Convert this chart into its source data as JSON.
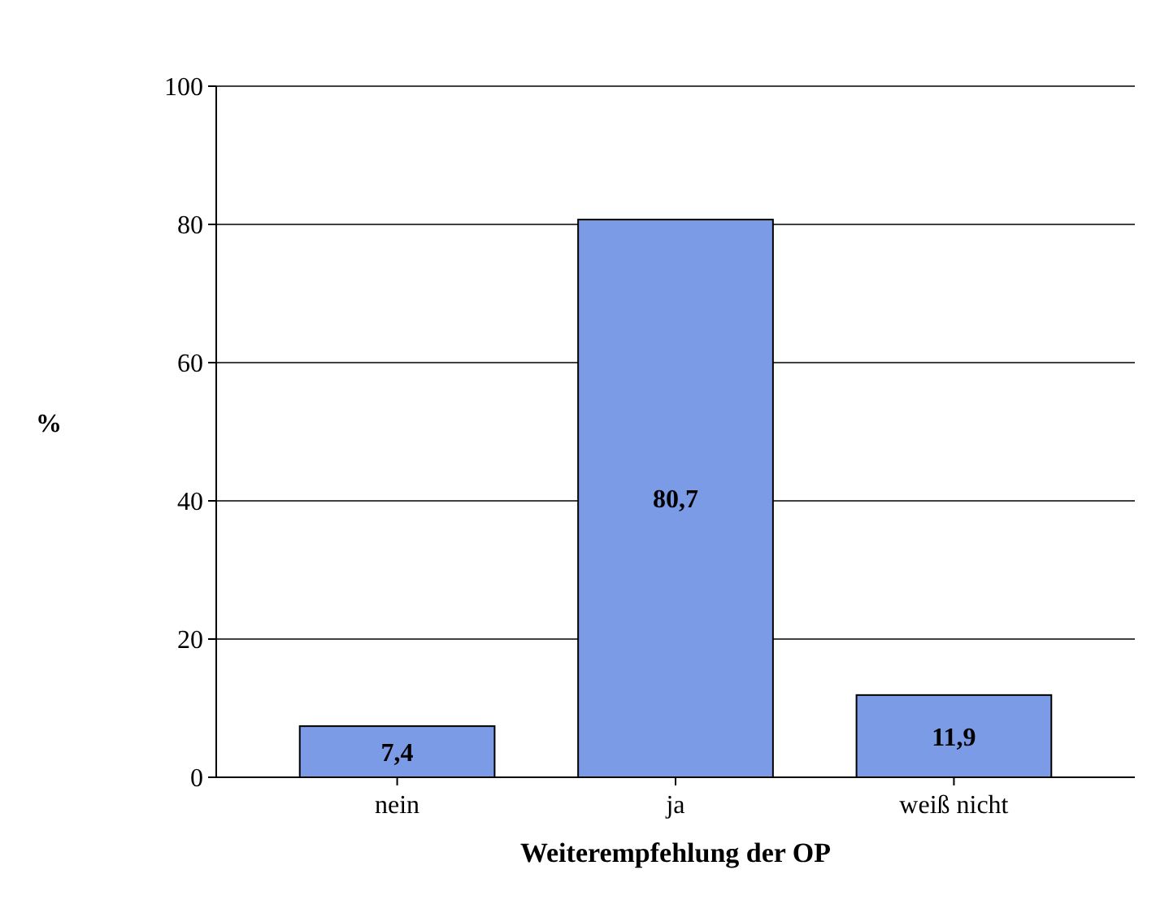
{
  "chart_data": {
    "type": "bar",
    "xlabel": "Weiterempfehlung der OP",
    "ylabel": "%",
    "categories": [
      "nein",
      "ja",
      "weiß nicht"
    ],
    "values": [
      7.4,
      80.7,
      11.9
    ],
    "value_labels": [
      "7,4",
      "80,7",
      "11,9"
    ],
    "color": "#7b9be6",
    "ylim": [
      0,
      100
    ],
    "yticks": [
      0,
      20,
      40,
      60,
      80,
      100
    ],
    "grid": "y"
  }
}
